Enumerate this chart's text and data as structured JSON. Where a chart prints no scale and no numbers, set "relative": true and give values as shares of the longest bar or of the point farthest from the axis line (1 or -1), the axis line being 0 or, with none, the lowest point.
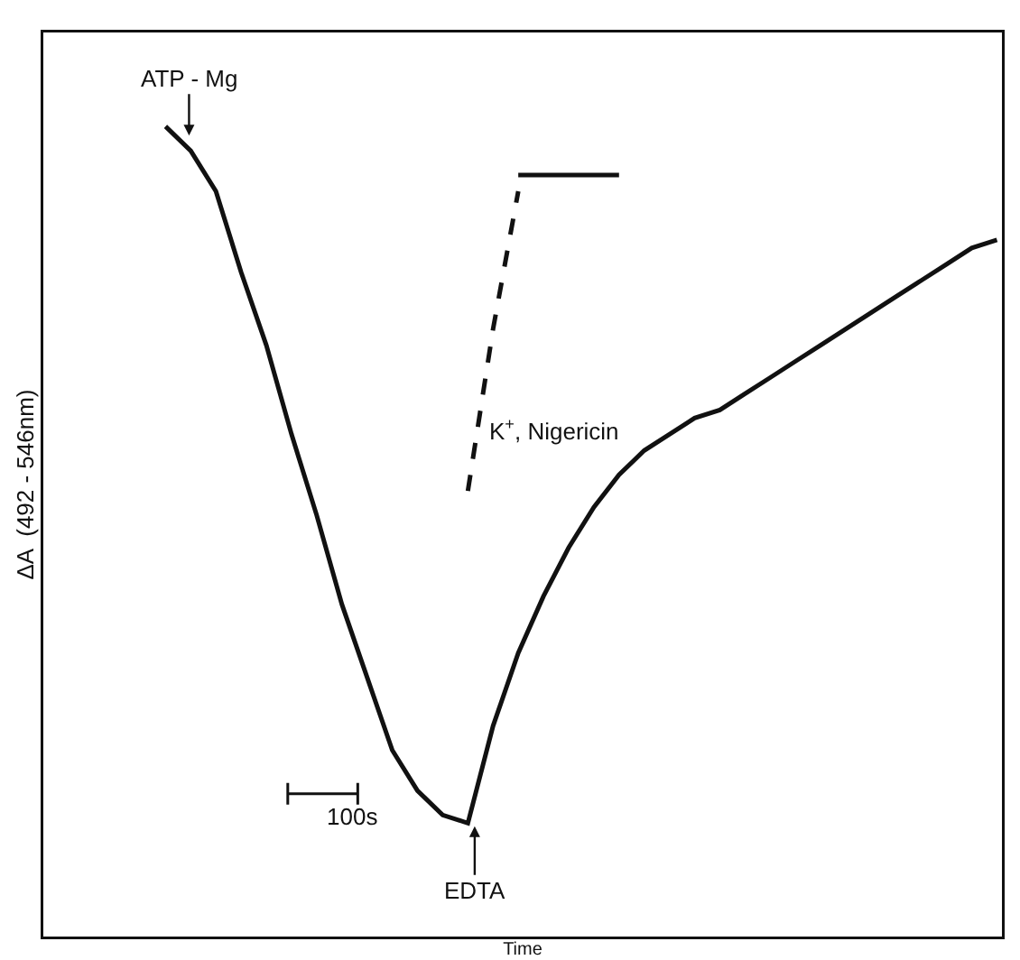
{
  "chart_data": {
    "type": "line",
    "relative": true,
    "xlabel": "Time",
    "ylabel": "ΔA  (492 - 546nm)",
    "marker": "none",
    "categories": [
      null,
      null,
      null,
      null,
      null,
      null,
      null,
      null,
      null,
      null,
      null,
      null,
      null,
      null,
      null,
      null,
      null,
      null,
      null,
      null,
      null,
      null,
      null,
      null,
      null,
      null,
      null,
      null,
      null,
      null,
      null,
      null,
      null,
      null
    ],
    "series": [
      {
        "color": "#111111",
        "line_style": "solid",
        "values": [
          1.0,
          0.97,
          0.92,
          0.82,
          0.73,
          0.62,
          0.52,
          0.41,
          0.32,
          0.23,
          0.18,
          0.15,
          0.14,
          0.26,
          0.35,
          0.42,
          0.48,
          0.53,
          0.57,
          0.6,
          0.62,
          0.64,
          0.65,
          0.67,
          0.69,
          0.71,
          0.73,
          0.75,
          0.77,
          0.79,
          0.81,
          0.83,
          0.85,
          0.86
        ]
      },
      {
        "color": "#111111",
        "line_style": "dashed",
        "values": [
          null,
          null,
          null,
          null,
          null,
          null,
          null,
          null,
          null,
          null,
          null,
          null,
          0.55,
          0.75,
          0.92,
          null,
          null,
          null,
          null,
          null,
          null,
          null,
          null,
          null,
          null,
          null,
          null,
          null,
          null,
          null,
          null,
          null,
          null,
          null
        ]
      },
      {
        "color": "#111111",
        "line_style": "solid",
        "values": [
          null,
          null,
          null,
          null,
          null,
          null,
          null,
          null,
          null,
          null,
          null,
          null,
          null,
          null,
          0.94,
          0.94,
          0.94,
          0.94,
          0.94,
          null,
          null,
          null,
          null,
          null,
          null,
          null,
          null,
          null,
          null,
          null,
          null,
          null,
          null,
          null
        ]
      }
    ],
    "annotations": [
      "ATP - Mg",
      "EDTA",
      "K$^{+}$, Nigericin",
      "100s"
    ]
  }
}
